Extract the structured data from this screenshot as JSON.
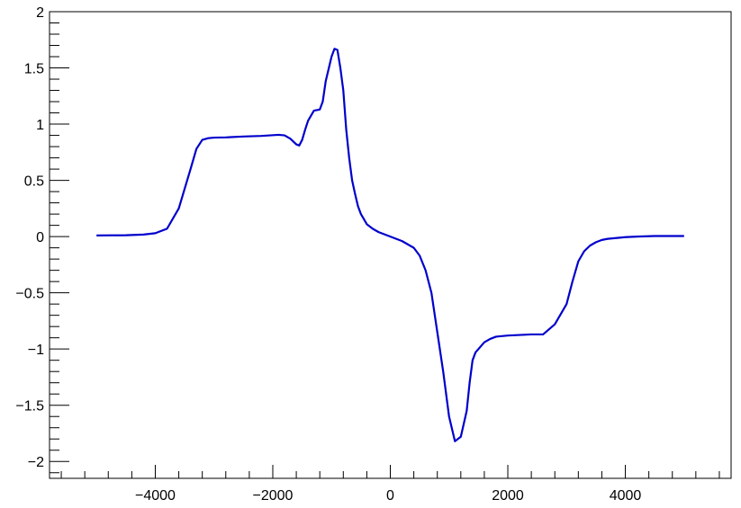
{
  "chart_data": {
    "type": "line",
    "title": "",
    "xlabel": "",
    "ylabel": "",
    "xlim": [
      -5800,
      5800
    ],
    "ylim": [
      -2.15,
      2
    ],
    "grid": false,
    "x_ticks": [
      {
        "value": -4000,
        "label": "−4000"
      },
      {
        "value": -2000,
        "label": "−2000"
      },
      {
        "value": 0,
        "label": "0"
      },
      {
        "value": 2000,
        "label": "2000"
      },
      {
        "value": 4000,
        "label": "4000"
      }
    ],
    "y_ticks": [
      {
        "value": 2,
        "label": "2"
      },
      {
        "value": 1.5,
        "label": "1.5"
      },
      {
        "value": 1,
        "label": "1"
      },
      {
        "value": 0.5,
        "label": "0.5"
      },
      {
        "value": 0,
        "label": "0"
      },
      {
        "value": -0.5,
        "label": "−0.5"
      },
      {
        "value": -1,
        "label": "−1"
      },
      {
        "value": -1.5,
        "label": "−1.5"
      },
      {
        "value": -2,
        "label": "−2"
      }
    ],
    "series": [
      {
        "color": "#0000cc",
        "x": [
          -5000,
          -4500,
          -4200,
          -4000,
          -3800,
          -3600,
          -3400,
          -3300,
          -3200,
          -3100,
          -3000,
          -2800,
          -2500,
          -2200,
          -1900,
          -1800,
          -1700,
          -1600,
          -1550,
          -1500,
          -1450,
          -1400,
          -1300,
          -1200,
          -1150,
          -1100,
          -1000,
          -950,
          -900,
          -850,
          -800,
          -750,
          -700,
          -650,
          -600,
          -550,
          -500,
          -400,
          -300,
          -200,
          -100,
          0,
          200,
          400,
          500,
          600,
          700,
          800,
          900,
          1000,
          1100,
          1200,
          1300,
          1350,
          1400,
          1450,
          1500,
          1550,
          1600,
          1700,
          1800,
          2000,
          2200,
          2400,
          2600,
          2800,
          3000,
          3100,
          3200,
          3300,
          3400,
          3500,
          3600,
          3700,
          3800,
          3900,
          4000,
          4200,
          4500,
          5000
        ],
        "y": [
          0.01,
          0.012,
          0.018,
          0.03,
          0.07,
          0.25,
          0.6,
          0.78,
          0.86,
          0.875,
          0.88,
          0.882,
          0.89,
          0.895,
          0.905,
          0.9,
          0.87,
          0.82,
          0.81,
          0.86,
          0.95,
          1.03,
          1.12,
          1.13,
          1.2,
          1.38,
          1.6,
          1.67,
          1.66,
          1.5,
          1.3,
          0.95,
          0.7,
          0.5,
          0.38,
          0.27,
          0.2,
          0.11,
          0.07,
          0.04,
          0.02,
          0.0,
          -0.04,
          -0.1,
          -0.17,
          -0.3,
          -0.5,
          -0.85,
          -1.2,
          -1.6,
          -1.82,
          -1.78,
          -1.55,
          -1.3,
          -1.1,
          -1.03,
          -1.0,
          -0.97,
          -0.94,
          -0.91,
          -0.89,
          -0.88,
          -0.875,
          -0.87,
          -0.87,
          -0.78,
          -0.6,
          -0.4,
          -0.22,
          -0.13,
          -0.08,
          -0.05,
          -0.03,
          -0.02,
          -0.015,
          -0.01,
          -0.005,
          0.0,
          0.005,
          0.005
        ]
      }
    ]
  }
}
